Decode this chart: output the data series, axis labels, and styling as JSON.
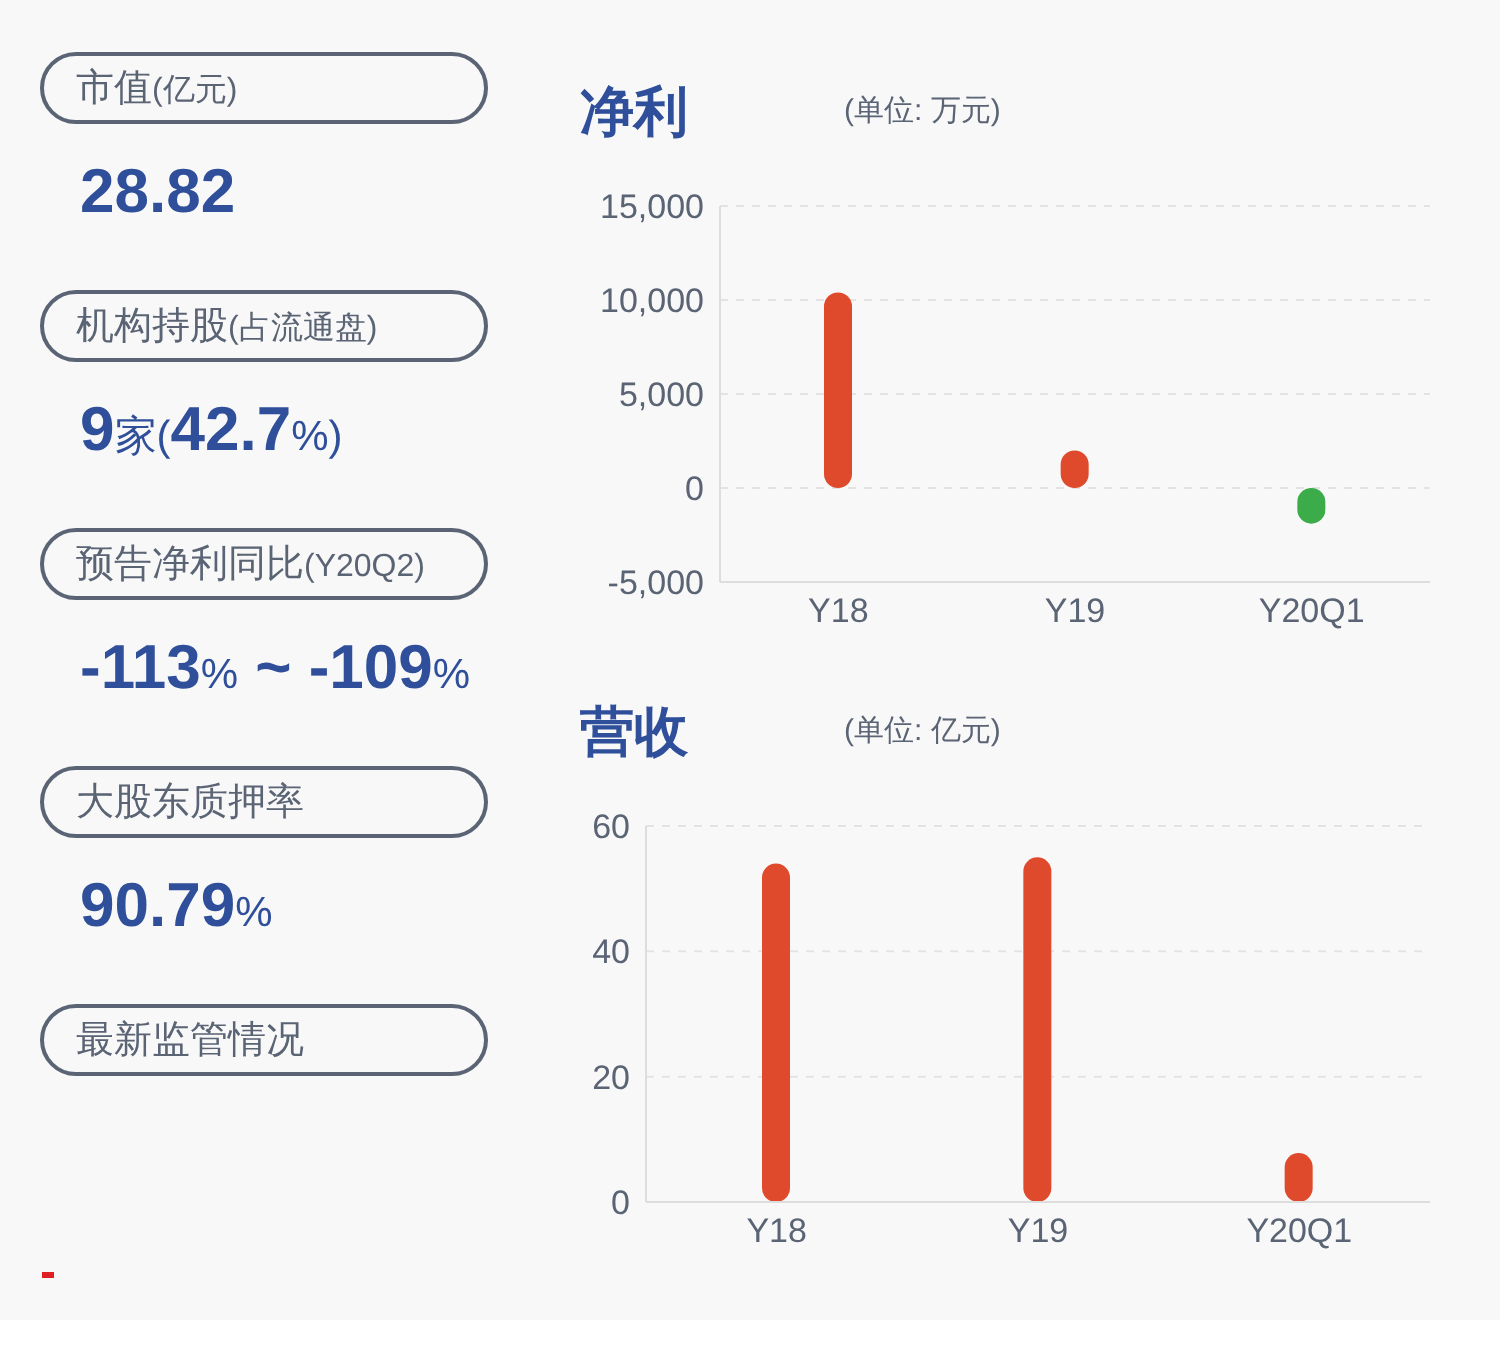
{
  "chart_data": [
    {
      "type": "other",
      "annotations": [
        "市值(亿元)",
        "28.82",
        "机构持股(占流通盘)",
        "9家(42.7%)",
        "预告净利同比(Y20Q2)",
        "-113% ~ -109%",
        "大股东质押率",
        "90.79%",
        "最新监管情况"
      ]
    },
    {
      "type": "bar",
      "title": "净利",
      "subtitle": "(单位: 万元)",
      "categories": [
        "Y18",
        "Y19",
        "Y20Q1"
      ],
      "values": [
        10400,
        2000,
        -1900
      ],
      "colors": [
        "#e04a2c",
        "#e04a2c",
        "#3cab4a"
      ],
      "ylim": [
        -5000,
        15000
      ],
      "yticks": [
        {
          "value": -5000,
          "label": "-5,000"
        },
        0,
        {
          "value": 5000,
          "label": "5,000"
        },
        {
          "value": 10000,
          "label": "10,000"
        },
        {
          "value": 15000,
          "label": "15,000"
        }
      ],
      "grid": "y"
    },
    {
      "type": "bar",
      "title": "营收",
      "subtitle": "(单位: 亿元)",
      "categories": [
        "Y18",
        "Y19",
        "Y20Q1"
      ],
      "values": [
        54,
        55,
        7.8
      ],
      "colors": [
        "#e04a2c",
        "#e04a2c",
        "#e04a2c"
      ],
      "ylim": [
        0,
        60
      ],
      "yticks": [
        0,
        20,
        40,
        60
      ],
      "grid": "y"
    }
  ]
}
